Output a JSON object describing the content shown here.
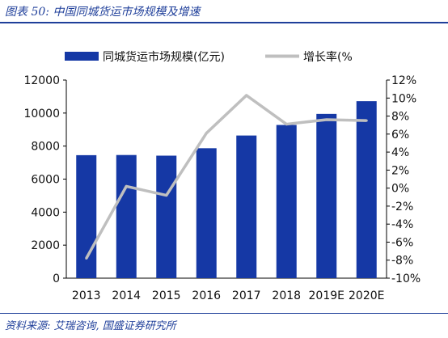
{
  "figure": {
    "title": "图表 50:  中国同城货运市场规模及增速",
    "source": "资料来源:  艾瑞咨询,  国盛证券研究所"
  },
  "chart_data": {
    "type": "bar",
    "categories": [
      "2013",
      "2014",
      "2015",
      "2016",
      "2017",
      "2018",
      "2019E",
      "2020E"
    ],
    "series": [
      {
        "name": "同城货运市场规模(亿元)",
        "type": "bar",
        "axis": "left",
        "color": "#1538a5",
        "values": [
          7450,
          7460,
          7420,
          7870,
          8640,
          9280,
          9950,
          10720
        ]
      },
      {
        "name": "增长率(%",
        "type": "line",
        "axis": "right",
        "color": "#bfbfbf",
        "values": [
          -7.8,
          0.2,
          -0.8,
          6.1,
          10.3,
          7.1,
          7.6,
          7.5
        ]
      }
    ],
    "y_left": {
      "min": 0,
      "max": 12000,
      "step": 2000,
      "ticks": [
        "0",
        "2000",
        "4000",
        "6000",
        "8000",
        "10000",
        "12000"
      ]
    },
    "y_right": {
      "min": -10,
      "max": 12,
      "step": 2,
      "ticks": [
        "-10%",
        "-8%",
        "-6%",
        "-4%",
        "-2%",
        "0%",
        "2%",
        "4%",
        "6%",
        "8%",
        "10%",
        "12%"
      ]
    },
    "legend_position": "top",
    "grid": false
  }
}
